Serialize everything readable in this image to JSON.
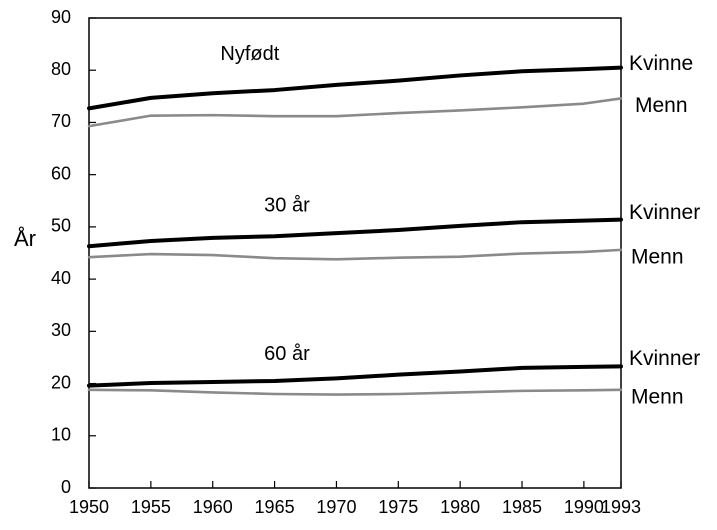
{
  "chart_data": {
    "type": "line",
    "title": "",
    "xlabel": "",
    "ylabel": "År",
    "xlim": [
      1950,
      1993
    ],
    "ylim": [
      0,
      90
    ],
    "grid": false,
    "x_ticks": [
      "1950",
      "1955",
      "1960",
      "1965",
      "1970",
      "1975",
      "1980",
      "1985",
      "1990",
      "1993"
    ],
    "y_ticks": [
      "0",
      "10",
      "20",
      "30",
      "40",
      "50",
      "60",
      "70",
      "80",
      "90"
    ],
    "x": [
      1950,
      1955,
      1960,
      1965,
      1970,
      1975,
      1980,
      1985,
      1990,
      1993
    ],
    "group_labels": [
      {
        "text": "Nyfødt",
        "value": 83,
        "year": 1963
      },
      {
        "text": "30 år",
        "value": 54,
        "year": 1966
      },
      {
        "text": "60 år",
        "value": 25.5,
        "year": 1966
      }
    ],
    "series": [
      {
        "name": "Kvinne",
        "group": "Nyfødt",
        "values": [
          72.7,
          74.7,
          75.6,
          76.2,
          77.2,
          78.0,
          79.0,
          79.8,
          80.2,
          80.5
        ]
      },
      {
        "name": "Menn",
        "group": "Nyfødt",
        "values": [
          69.3,
          71.3,
          71.4,
          71.2,
          71.2,
          71.8,
          72.3,
          72.9,
          73.6,
          74.6
        ]
      },
      {
        "name": "Kvinner",
        "group": "30 år",
        "values": [
          46.3,
          47.3,
          47.9,
          48.2,
          48.8,
          49.4,
          50.2,
          50.9,
          51.2,
          51.4
        ]
      },
      {
        "name": "Menn",
        "group": "30 år",
        "values": [
          44.2,
          44.8,
          44.6,
          44.0,
          43.8,
          44.1,
          44.3,
          44.9,
          45.2,
          45.6
        ]
      },
      {
        "name": "Kvinner",
        "group": "60 år",
        "values": [
          19.6,
          20.1,
          20.3,
          20.5,
          21.0,
          21.7,
          22.3,
          23.0,
          23.2,
          23.3
        ]
      },
      {
        "name": "Menn",
        "group": "60 år",
        "values": [
          18.8,
          18.7,
          18.3,
          18.0,
          17.9,
          18.0,
          18.3,
          18.6,
          18.7,
          18.8
        ]
      }
    ],
    "colors": {
      "women": "#000000",
      "men": "#8a8a8a",
      "axis": "#000000"
    }
  }
}
